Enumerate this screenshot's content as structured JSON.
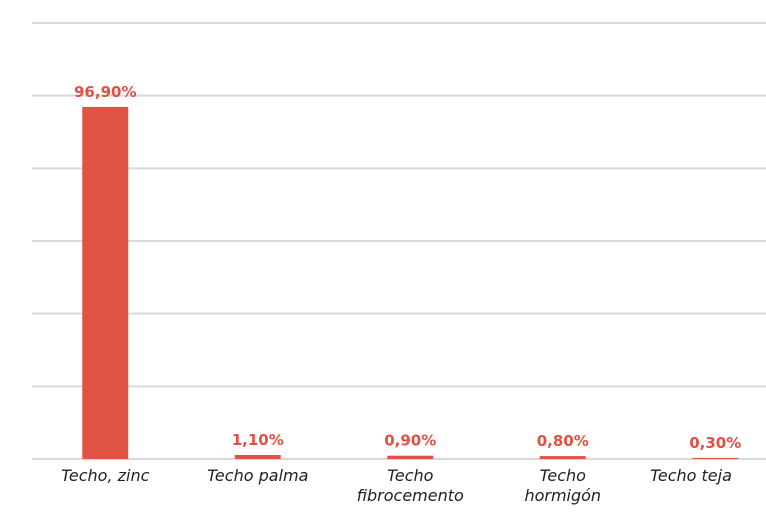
{
  "chart_data": {
    "type": "bar",
    "categories": [
      "Techo, zinc",
      "Techo palma",
      "Techo\nfibrocemento",
      "Techo\nhormigón",
      "Techo teja"
    ],
    "values": [
      96.9,
      1.1,
      0.9,
      0.8,
      0.3
    ],
    "value_labels": [
      "96,90%",
      "1,10%",
      "0,90%",
      "0,80%",
      "0,30%"
    ],
    "color": "#e05243",
    "ylim": [
      0,
      120
    ],
    "yticks": [
      0,
      20,
      40,
      60,
      80,
      100,
      120
    ],
    "grid": true
  }
}
